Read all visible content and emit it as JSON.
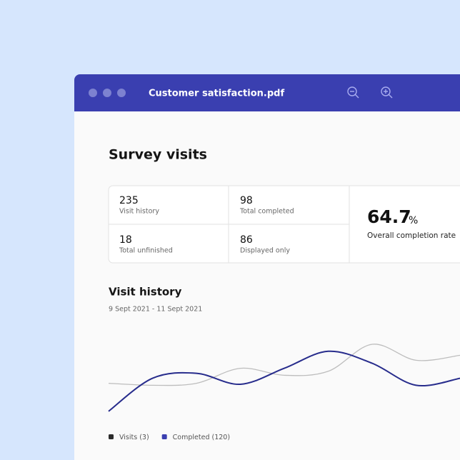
{
  "window": {
    "title": "Customer satisfaction.pdf"
  },
  "page": {
    "heading": "Survey visits",
    "stats": [
      {
        "value": 235,
        "label": "Visit history"
      },
      {
        "value": 98,
        "label": "Total completed"
      },
      {
        "value": 18,
        "label": "Total unfinished"
      },
      {
        "value": 86,
        "label": "Displayed only"
      }
    ],
    "completion": {
      "value": 64.7,
      "unit": "%",
      "label": "Overall completion rate"
    }
  },
  "chart_data": {
    "type": "line",
    "title": "Visit history",
    "subtitle": "9 Sept 2021 - 11 Sept 2021",
    "ylim": [
      0,
      100
    ],
    "series": [
      {
        "name": "Visits (3)",
        "color": "#bdbdbd",
        "legend_color": "#2b2b2b",
        "values": [
          31,
          29,
          31,
          46,
          39,
          43,
          70,
          54,
          59
        ]
      },
      {
        "name": "Completed (120)",
        "color": "#272c8c",
        "legend_color": "#3a3fb0",
        "values": [
          3,
          36,
          41,
          30,
          46,
          63,
          51,
          29,
          36
        ]
      }
    ]
  }
}
